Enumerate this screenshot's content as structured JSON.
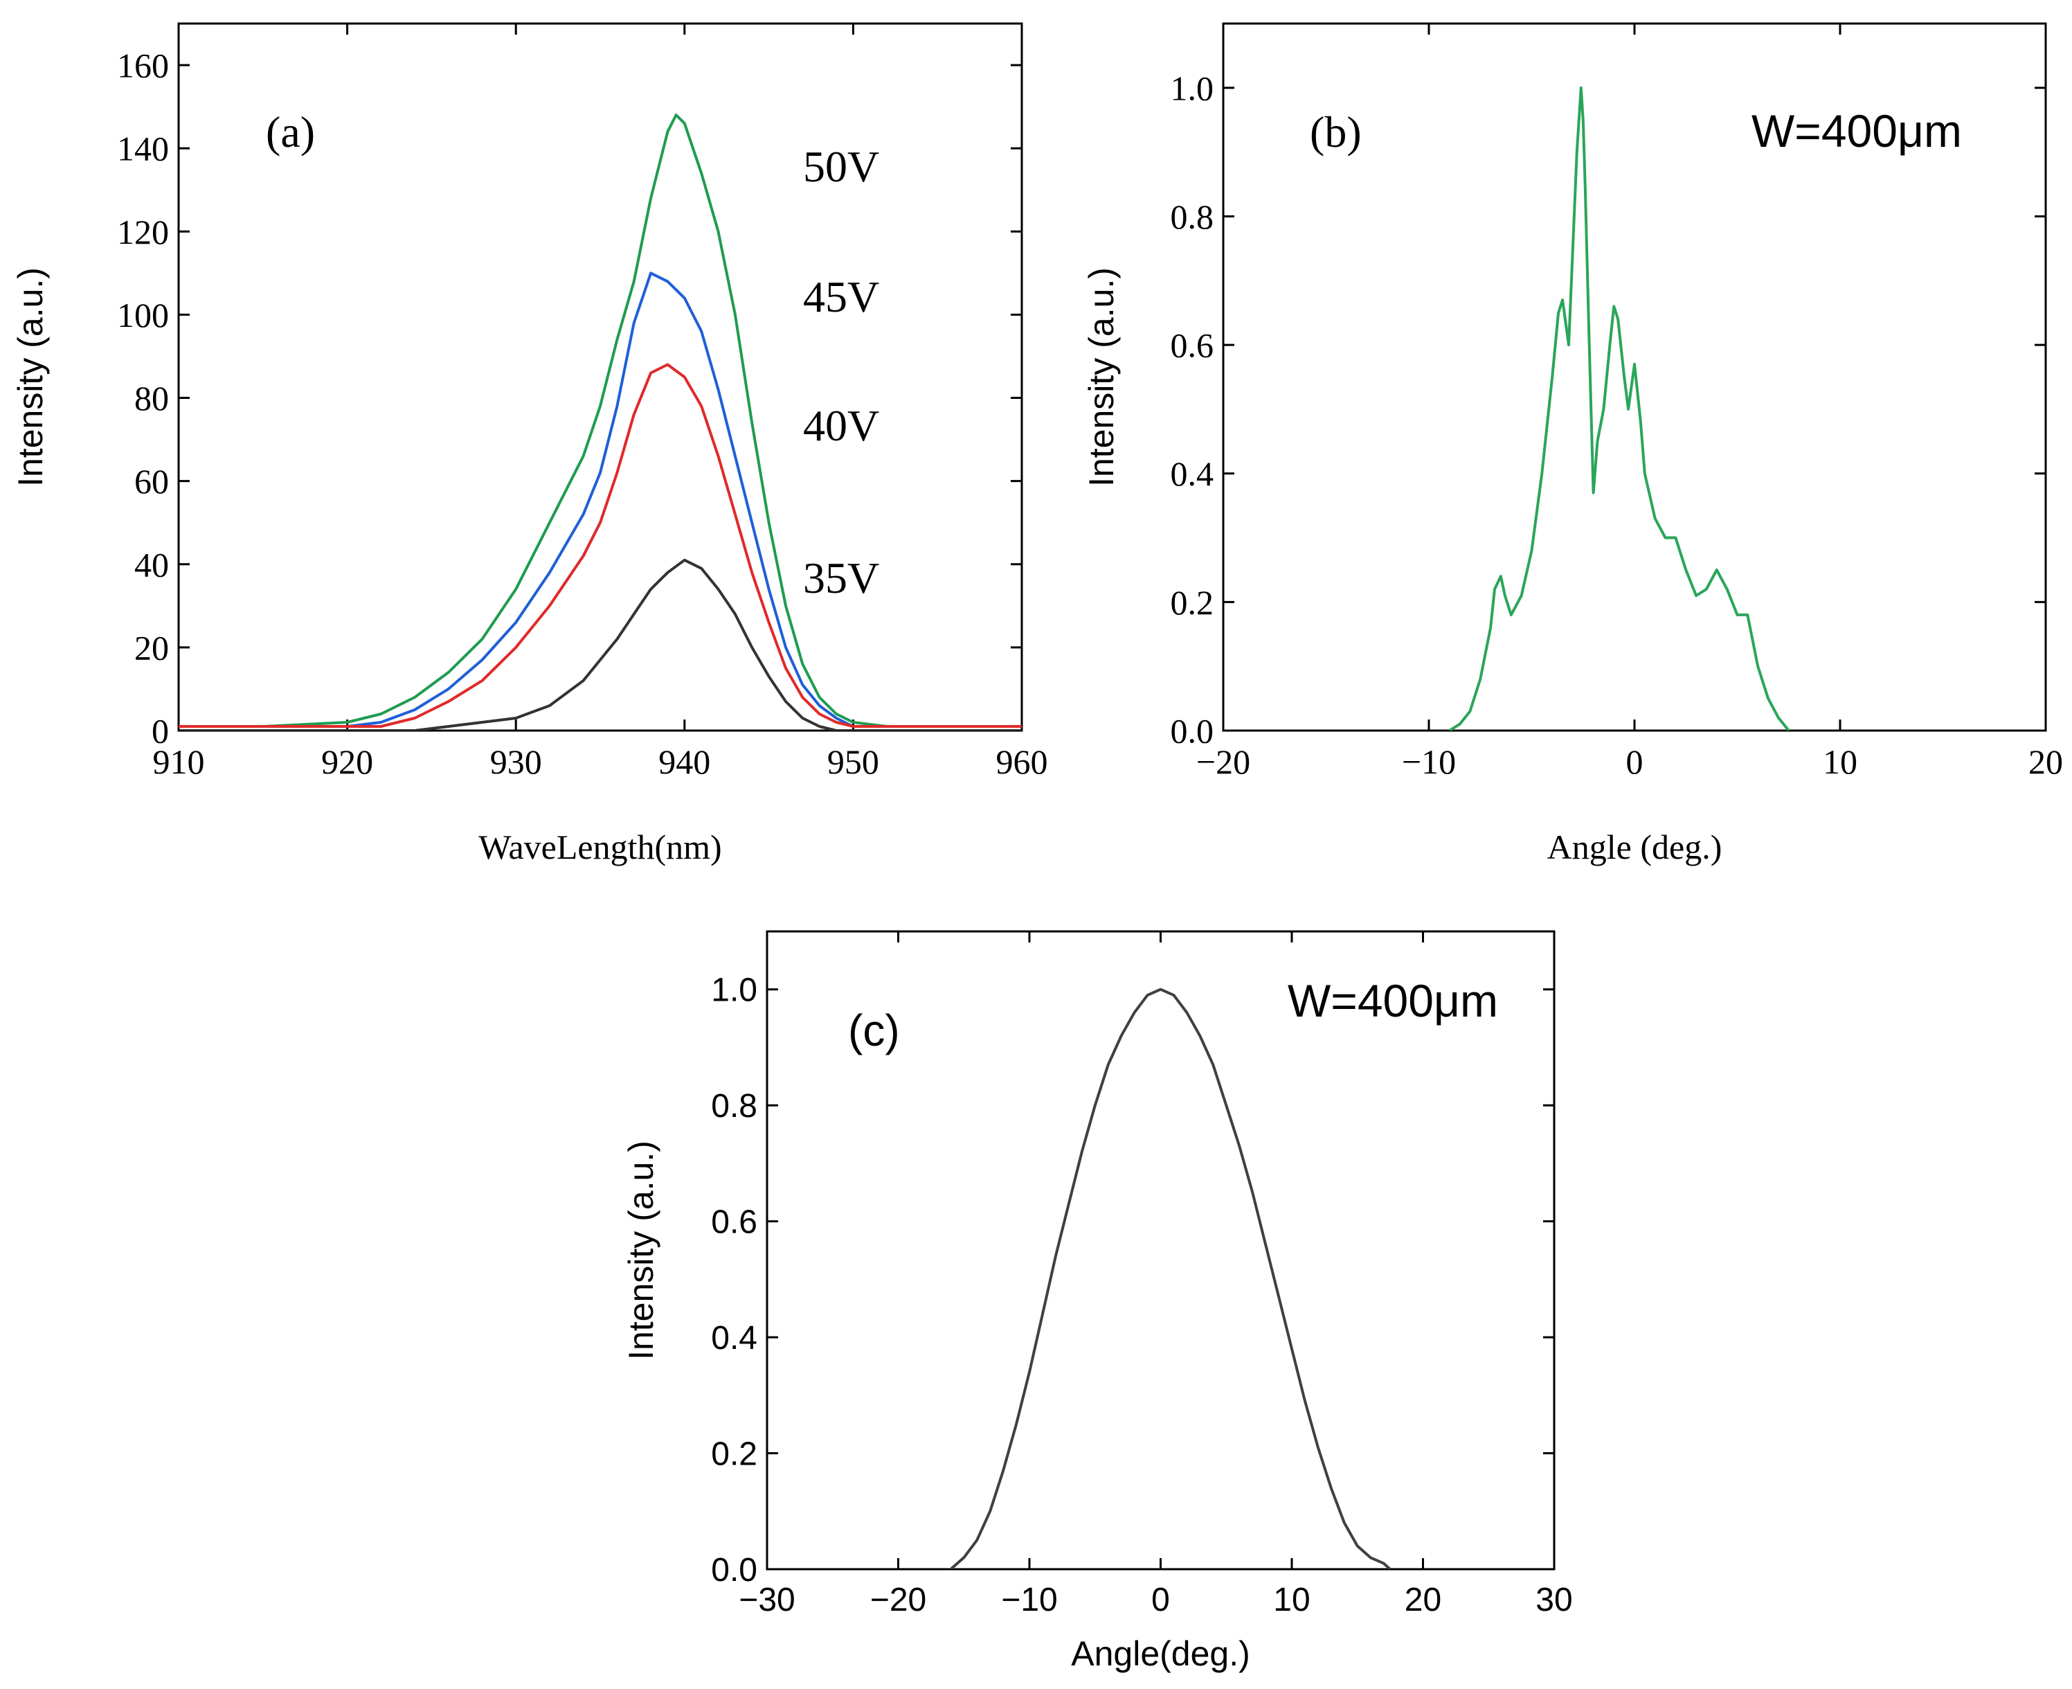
{
  "chart_data": [
    {
      "type": "line",
      "panel_label": "(a)",
      "xlabel": "WaveLength(nm)",
      "ylabel": "Intensity (a.u.)",
      "xlim": [
        910,
        960
      ],
      "ylim": [
        0,
        170
      ],
      "xticks": [
        910,
        920,
        930,
        940,
        950,
        960
      ],
      "yticks": [
        0,
        20,
        40,
        60,
        80,
        100,
        120,
        140,
        160
      ],
      "series": [
        {
          "name": "50V",
          "color": "#1f9c50",
          "x": [
            910,
            915,
            920,
            922,
            924,
            926,
            928,
            930,
            932,
            934,
            935,
            936,
            937,
            938,
            939,
            939.5,
            940,
            941,
            942,
            943,
            944,
            945,
            946,
            947,
            948,
            949,
            950,
            952,
            955,
            960
          ],
          "y": [
            1,
            1,
            2,
            4,
            8,
            14,
            22,
            34,
            50,
            66,
            78,
            94,
            108,
            128,
            144,
            148,
            146,
            134,
            120,
            100,
            74,
            50,
            30,
            16,
            8,
            4,
            2,
            1,
            1,
            1
          ]
        },
        {
          "name": "45V",
          "color": "#1f5fd8",
          "x": [
            910,
            915,
            920,
            922,
            924,
            926,
            928,
            930,
            932,
            934,
            935,
            936,
            937,
            938,
            939,
            940,
            941,
            942,
            943,
            944,
            945,
            946,
            947,
            948,
            949,
            950,
            952,
            955,
            960
          ],
          "y": [
            1,
            1,
            1,
            2,
            5,
            10,
            17,
            26,
            38,
            52,
            62,
            78,
            98,
            110,
            108,
            104,
            96,
            82,
            66,
            50,
            34,
            20,
            11,
            6,
            3,
            1,
            1,
            1,
            1
          ]
        },
        {
          "name": "40V",
          "color": "#e02a2a",
          "x": [
            910,
            915,
            920,
            922,
            924,
            926,
            928,
            930,
            932,
            934,
            935,
            936,
            937,
            938,
            939,
            940,
            941,
            942,
            943,
            944,
            945,
            946,
            947,
            948,
            949,
            950,
            952,
            955,
            960
          ],
          "y": [
            1,
            1,
            1,
            1,
            3,
            7,
            12,
            20,
            30,
            42,
            50,
            62,
            76,
            86,
            88,
            85,
            78,
            66,
            52,
            38,
            26,
            15,
            8,
            4,
            2,
            1,
            1,
            1,
            1
          ]
        },
        {
          "name": "35V",
          "color": "#333333",
          "x": [
            910,
            915,
            920,
            924,
            926,
            928,
            930,
            932,
            934,
            936,
            937,
            938,
            939,
            940,
            941,
            942,
            943,
            944,
            945,
            946,
            947,
            948,
            949,
            950,
            955,
            960
          ],
          "y": [
            0,
            0,
            0,
            0,
            1,
            2,
            3,
            6,
            12,
            22,
            28,
            34,
            38,
            41,
            39,
            34,
            28,
            20,
            13,
            7,
            3,
            1,
            0,
            0,
            0,
            0
          ]
        }
      ]
    },
    {
      "type": "line",
      "panel_label": "(b)",
      "annotation": "W=400μm",
      "xlabel": "Angle (deg.)",
      "ylabel": "Intensity (a.u.)",
      "xlim": [
        -20,
        20
      ],
      "ylim": [
        0,
        1.1
      ],
      "xticks": [
        -20,
        -10,
        0,
        10,
        20
      ],
      "yticks": [
        0.0,
        0.2,
        0.4,
        0.6,
        0.8,
        1.0
      ],
      "series": [
        {
          "color": "#2aa65a",
          "x": [
            -9,
            -8.5,
            -8,
            -7.5,
            -7,
            -6.8,
            -6.5,
            -6.3,
            -6,
            -5.5,
            -5,
            -4.5,
            -4,
            -3.7,
            -3.5,
            -3.2,
            -3,
            -2.8,
            -2.6,
            -2.5,
            -2.4,
            -2.2,
            -2,
            -1.8,
            -1.5,
            -1.2,
            -1,
            -0.8,
            -0.5,
            -0.3,
            0,
            0.3,
            0.5,
            1,
            1.5,
            2,
            2.5,
            3,
            3.5,
            4,
            4.5,
            5,
            5.5,
            6,
            6.5,
            7,
            7.5
          ],
          "y": [
            0,
            0.01,
            0.03,
            0.08,
            0.16,
            0.22,
            0.24,
            0.21,
            0.18,
            0.21,
            0.28,
            0.4,
            0.55,
            0.65,
            0.67,
            0.6,
            0.75,
            0.9,
            1.0,
            0.95,
            0.85,
            0.6,
            0.37,
            0.45,
            0.5,
            0.6,
            0.66,
            0.64,
            0.55,
            0.5,
            0.57,
            0.48,
            0.4,
            0.33,
            0.3,
            0.3,
            0.25,
            0.21,
            0.22,
            0.25,
            0.22,
            0.18,
            0.18,
            0.1,
            0.05,
            0.02,
            0
          ]
        }
      ]
    },
    {
      "type": "line",
      "panel_label": "(c)",
      "annotation": "W=400μm",
      "xlabel": "Angle(deg.)",
      "ylabel": "Intensity (a.u.)",
      "xlim": [
        -30,
        30
      ],
      "ylim": [
        0,
        1.1
      ],
      "xticks": [
        -30,
        -20,
        -10,
        0,
        10,
        20,
        30
      ],
      "yticks": [
        0.0,
        0.2,
        0.4,
        0.6,
        0.8,
        1.0
      ],
      "series": [
        {
          "color": "#404040",
          "x": [
            -16,
            -15,
            -14,
            -13,
            -12,
            -11,
            -10,
            -9,
            -8,
            -7,
            -6,
            -5,
            -4,
            -3,
            -2,
            -1,
            0,
            1,
            2,
            3,
            4,
            5,
            6,
            7,
            8,
            9,
            10,
            11,
            12,
            13,
            14,
            15,
            16,
            17,
            17.5
          ],
          "y": [
            0,
            0.02,
            0.05,
            0.1,
            0.17,
            0.25,
            0.34,
            0.44,
            0.54,
            0.63,
            0.72,
            0.8,
            0.87,
            0.92,
            0.96,
            0.99,
            1.0,
            0.99,
            0.96,
            0.92,
            0.87,
            0.8,
            0.73,
            0.65,
            0.56,
            0.47,
            0.38,
            0.29,
            0.21,
            0.14,
            0.08,
            0.04,
            0.02,
            0.01,
            0
          ]
        }
      ]
    }
  ]
}
